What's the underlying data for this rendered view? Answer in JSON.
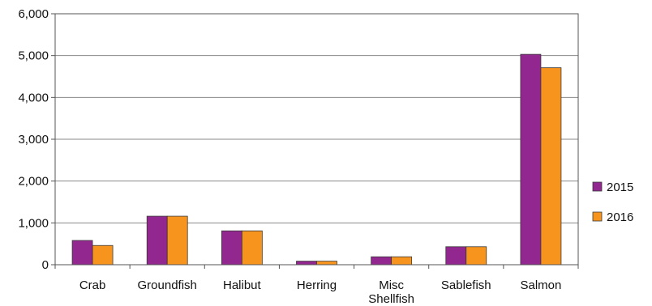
{
  "chart_data": {
    "type": "bar",
    "categories": [
      [
        "Crab"
      ],
      [
        "Groundfish"
      ],
      [
        "Halibut"
      ],
      [
        "Herring"
      ],
      [
        "Misc",
        "Shellfish"
      ],
      [
        "Sablefish"
      ],
      [
        "Salmon"
      ]
    ],
    "series": [
      {
        "name": "2015",
        "color": "#92278F",
        "values": [
          580,
          1160,
          810,
          85,
          190,
          430,
          5030
        ]
      },
      {
        "name": "2016",
        "color": "#F7941D",
        "values": [
          460,
          1160,
          810,
          85,
          190,
          430,
          4710
        ]
      }
    ],
    "yticks": [
      "0",
      "1,000",
      "2,000",
      "3,000",
      "4,000",
      "5,000",
      "6,000"
    ],
    "ylim": [
      0,
      6000
    ],
    "grid": true,
    "legend_position": "right"
  }
}
